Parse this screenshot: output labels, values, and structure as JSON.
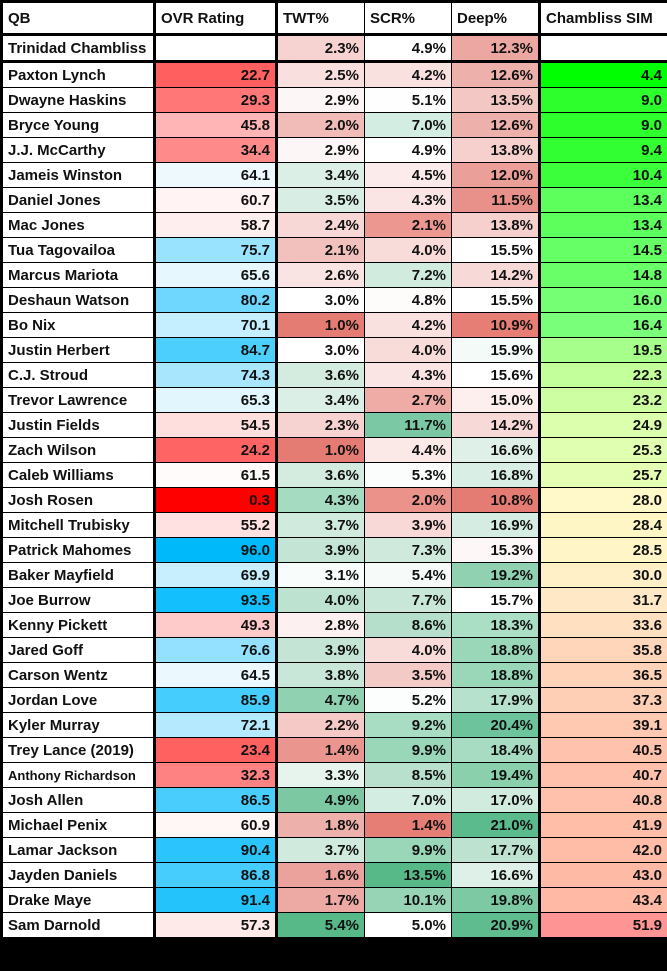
{
  "table": {
    "headers": [
      "QB",
      "OVR Rating",
      "TWT%",
      "SCR%",
      "Deep%",
      "Chambliss SIM"
    ],
    "baseline": {
      "qb": "Trinidad Chambliss",
      "ovr": "",
      "twt": "2.3%",
      "scr": "4.9%",
      "deep": "12.3%",
      "sim": "",
      "colors": {
        "ovr": "#ffffff",
        "twt": "#f6d3d1",
        "scr": "#ffffff",
        "deep": "#eca7a2",
        "sim": "#ffffff"
      }
    },
    "rows": [
      {
        "qb": "Paxton Lynch",
        "ovr": "22.7",
        "twt": "2.5%",
        "scr": "4.2%",
        "deep": "12.6%",
        "sim": "4.4",
        "colors": {
          "ovr": "#ff5f5f",
          "twt": "#f9dfde",
          "scr": "#f9e1e0",
          "deep": "#eeb0ab",
          "sim": "#00ff00"
        }
      },
      {
        "qb": "Dwayne Haskins",
        "ovr": "29.3",
        "twt": "2.9%",
        "scr": "5.1%",
        "deep": "13.5%",
        "sim": "9.0",
        "colors": {
          "ovr": "#ff7777",
          "twt": "#fcf6f6",
          "scr": "#fefefe",
          "deep": "#f3c7c4",
          "sim": "#2dff2d"
        }
      },
      {
        "qb": "Bryce Young",
        "ovr": "45.8",
        "twt": "2.0%",
        "scr": "7.0%",
        "deep": "12.6%",
        "sim": "9.0",
        "colors": {
          "ovr": "#ffb5b5",
          "twt": "#f1bcb8",
          "scr": "#d4ede2",
          "deep": "#eeb0ab",
          "sim": "#2dff2d"
        }
      },
      {
        "qb": "J.J. McCarthy",
        "ovr": "34.4",
        "twt": "2.9%",
        "scr": "4.9%",
        "deep": "13.8%",
        "sim": "9.4",
        "colors": {
          "ovr": "#ff8a8a",
          "twt": "#fcf6f6",
          "scr": "#ffffff",
          "deep": "#f5d0cd",
          "sim": "#32ff32"
        }
      },
      {
        "qb": "Jameis Winston",
        "ovr": "64.1",
        "twt": "3.4%",
        "scr": "4.5%",
        "deep": "12.0%",
        "sim": "10.4",
        "colors": {
          "ovr": "#eef9fe",
          "twt": "#dcefe6",
          "scr": "#fbeceb",
          "deep": "#eb9f99",
          "sim": "#3cff3c"
        }
      },
      {
        "qb": "Daniel Jones",
        "ovr": "60.7",
        "twt": "3.5%",
        "scr": "4.3%",
        "deep": "11.5%",
        "sim": "13.4",
        "colors": {
          "ovr": "#fff3f3",
          "twt": "#d8ede3",
          "scr": "#fae5e4",
          "deep": "#e8918a",
          "sim": "#5cff5c"
        }
      },
      {
        "qb": "Mac Jones",
        "ovr": "58.7",
        "twt": "2.4%",
        "scr": "2.1%",
        "deep": "13.8%",
        "sim": "13.4",
        "colors": {
          "ovr": "#ffeeee",
          "twt": "#f7d8d6",
          "scr": "#ec9891",
          "deep": "#f5d0cd",
          "sim": "#5cff5c"
        }
      },
      {
        "qb": "Tua Tagovailoa",
        "ovr": "75.7",
        "twt": "2.1%",
        "scr": "4.0%",
        "deep": "15.5%",
        "sim": "14.5",
        "colors": {
          "ovr": "#9ae3fe",
          "twt": "#f3c1bd",
          "scr": "#f8dcda",
          "deep": "#ffffff",
          "sim": "#66ff66"
        }
      },
      {
        "qb": "Marcus Mariota",
        "ovr": "65.6",
        "twt": "2.6%",
        "scr": "7.2%",
        "deep": "14.2%",
        "sim": "14.8",
        "colors": {
          "ovr": "#e6f7fe",
          "twt": "#fae4e3",
          "scr": "#d1ebdf",
          "deep": "#f7dad8",
          "sim": "#69ff69"
        }
      },
      {
        "qb": "Deshaun Watson",
        "ovr": "80.2",
        "twt": "3.0%",
        "scr": "4.8%",
        "deep": "15.5%",
        "sim": "16.0",
        "colors": {
          "ovr": "#6fd6fd",
          "twt": "#ffffff",
          "scr": "#fefbfb",
          "deep": "#ffffff",
          "sim": "#75ff75"
        }
      },
      {
        "qb": "Bo Nix",
        "ovr": "70.1",
        "twt": "1.0%",
        "scr": "4.2%",
        "deep": "10.9%",
        "sim": "16.4",
        "colors": {
          "ovr": "#c5effe",
          "twt": "#e57c73",
          "scr": "#f9e1e0",
          "deep": "#e67e75",
          "sim": "#7aff7a"
        }
      },
      {
        "qb": "Justin Herbert",
        "ovr": "84.7",
        "twt": "3.0%",
        "scr": "4.0%",
        "deep": "15.9%",
        "sim": "19.5",
        "colors": {
          "ovr": "#4dcffd",
          "twt": "#ffffff",
          "scr": "#f8dcda",
          "deep": "#f3faf7",
          "sim": "#a6ff8a"
        }
      },
      {
        "qb": "C.J. Stroud",
        "ovr": "74.3",
        "twt": "3.6%",
        "scr": "4.3%",
        "deep": "15.6%",
        "sim": "22.3",
        "colors": {
          "ovr": "#a8e6fe",
          "twt": "#d4ebe0",
          "scr": "#fae5e4",
          "deep": "#ffffff",
          "sim": "#c3ff9a"
        }
      },
      {
        "qb": "Trevor Lawrence",
        "ovr": "65.3",
        "twt": "3.4%",
        "scr": "2.7%",
        "deep": "15.0%",
        "sim": "23.2",
        "colors": {
          "ovr": "#e2f6fe",
          "twt": "#dcefe6",
          "scr": "#efaca7",
          "deep": "#fcefee",
          "sim": "#cdffa2"
        }
      },
      {
        "qb": "Justin Fields",
        "ovr": "54.5",
        "twt": "2.3%",
        "scr": "11.7%",
        "deep": "14.2%",
        "sim": "24.9",
        "colors": {
          "ovr": "#ffdede",
          "twt": "#f6d3d1",
          "scr": "#7bc9a4",
          "deep": "#f7dad8",
          "sim": "#dcffae"
        }
      },
      {
        "qb": "Zach Wilson",
        "ovr": "24.2",
        "twt": "1.0%",
        "scr": "4.4%",
        "deep": "16.6%",
        "sim": "25.3",
        "colors": {
          "ovr": "#ff6464",
          "twt": "#e57c73",
          "scr": "#fbe9e8",
          "deep": "#def0e8",
          "sim": "#e0ffb0"
        }
      },
      {
        "qb": "Caleb Williams",
        "ovr": "61.5",
        "twt": "3.6%",
        "scr": "5.3%",
        "deep": "16.8%",
        "sim": "25.7",
        "colors": {
          "ovr": "#fffbfb",
          "twt": "#d4ebe0",
          "scr": "#fafdfc",
          "deep": "#d9eee4",
          "sim": "#e4ffb4"
        }
      },
      {
        "qb": "Josh Rosen",
        "ovr": "0.3",
        "twt": "4.3%",
        "scr": "2.0%",
        "deep": "10.8%",
        "sim": "28.0",
        "colors": {
          "ovr": "#ff0000",
          "twt": "#a5dcc1",
          "scr": "#eb928b",
          "deep": "#e57c73",
          "sim": "#fff8c8"
        }
      },
      {
        "qb": "Mitchell Trubisky",
        "ovr": "55.2",
        "twt": "3.7%",
        "scr": "3.9%",
        "deep": "16.9%",
        "sim": "28.4",
        "colors": {
          "ovr": "#ffe1e1",
          "twt": "#d0eadd",
          "scr": "#f8d9d7",
          "deep": "#d5ece2",
          "sim": "#fff6c6"
        }
      },
      {
        "qb": "Patrick Mahomes",
        "ovr": "96.0",
        "twt": "3.9%",
        "scr": "7.3%",
        "deep": "15.3%",
        "sim": "28.5",
        "colors": {
          "ovr": "#00b9fb",
          "twt": "#c4e5d5",
          "scr": "#cfeadd",
          "deep": "#fdf7f7",
          "sim": "#fff5c6"
        }
      },
      {
        "qb": "Baker Mayfield",
        "ovr": "69.9",
        "twt": "3.1%",
        "scr": "5.4%",
        "deep": "19.2%",
        "sim": "30.0",
        "colors": {
          "ovr": "#c7effe",
          "twt": "#f8fcfa",
          "scr": "#f6fbf9",
          "deep": "#8fd1b1",
          "sim": "#fff0c8"
        }
      },
      {
        "qb": "Joe Burrow",
        "ovr": "93.5",
        "twt": "4.0%",
        "scr": "7.7%",
        "deep": "15.7%",
        "sim": "31.7",
        "colors": {
          "ovr": "#13bffc",
          "twt": "#bde2d0",
          "scr": "#c8e7d8",
          "deep": "#ffffff",
          "sim": "#ffe8c6"
        }
      },
      {
        "qb": "Kenny Pickett",
        "ovr": "49.3",
        "twt": "2.8%",
        "scr": "8.6%",
        "deep": "18.3%",
        "sim": "33.6",
        "colors": {
          "ovr": "#ffcaca",
          "twt": "#fcf1f0",
          "scr": "#b6dfcb",
          "deep": "#aadec5",
          "sim": "#ffe0c0"
        }
      },
      {
        "qb": "Jared Goff",
        "ovr": "76.6",
        "twt": "3.9%",
        "scr": "4.0%",
        "deep": "18.8%",
        "sim": "35.8",
        "colors": {
          "ovr": "#93e1fe",
          "twt": "#c4e5d5",
          "scr": "#f8dcda",
          "deep": "#9ad6b8",
          "sim": "#ffd6ba"
        }
      },
      {
        "qb": "Carson Wentz",
        "ovr": "64.5",
        "twt": "3.8%",
        "scr": "3.5%",
        "deep": "18.8%",
        "sim": "36.5",
        "colors": {
          "ovr": "#ebf9fe",
          "twt": "#c8e7d8",
          "scr": "#f4cac7",
          "deep": "#9ad6b8",
          "sim": "#ffd3b8"
        }
      },
      {
        "qb": "Jordan Love",
        "ovr": "85.9",
        "twt": "4.7%",
        "scr": "5.2%",
        "deep": "17.9%",
        "sim": "37.3",
        "colors": {
          "ovr": "#45cdfd",
          "twt": "#8fd1b1",
          "scr": "#fcfefd",
          "deep": "#b6e1cc",
          "sim": "#ffcfb5"
        }
      },
      {
        "qb": "Kyler Murray",
        "ovr": "72.1",
        "twt": "2.2%",
        "scr": "9.2%",
        "deep": "20.4%",
        "sim": "39.1",
        "colors": {
          "ovr": "#b5eafe",
          "twt": "#f5c9c6",
          "scr": "#a8dcc3",
          "deep": "#6dc39b",
          "sim": "#ffc8b0"
        }
      },
      {
        "qb": "Trey Lance (2019)",
        "ovr": "23.4",
        "twt": "1.4%",
        "scr": "9.9%",
        "deep": "18.4%",
        "sim": "40.5",
        "colors": {
          "ovr": "#ff6161",
          "twt": "#ea968f",
          "scr": "#9ad6b8",
          "deep": "#a7dcc2",
          "sim": "#ffc2ad"
        }
      },
      {
        "qb": "Anthony Richardson",
        "ovr": "32.3",
        "twt": "3.3%",
        "scr": "8.5%",
        "deep": "19.4%",
        "sim": "40.7",
        "colors": {
          "ovr": "#ff8282",
          "twt": "#e7f4ee",
          "scr": "#b8e0cc",
          "deep": "#8ad0ad",
          "sim": "#ffc1ac"
        }
      },
      {
        "qb": "Josh Allen",
        "ovr": "86.5",
        "twt": "4.9%",
        "scr": "7.0%",
        "deep": "17.0%",
        "sim": "40.8",
        "colors": {
          "ovr": "#49cdfd",
          "twt": "#7cc8a3",
          "scr": "#d4ede2",
          "deep": "#d1ebdf",
          "sim": "#ffc1ab"
        }
      },
      {
        "qb": "Michael Penix",
        "ovr": "60.9",
        "twt": "1.8%",
        "scr": "1.4%",
        "deep": "21.0%",
        "sim": "41.9",
        "colors": {
          "ovr": "#fff6f6",
          "twt": "#eeb0ab",
          "scr": "#e67e75",
          "deep": "#5bbb8d",
          "sim": "#ffbea8"
        }
      },
      {
        "qb": "Lamar Jackson",
        "ovr": "90.4",
        "twt": "3.7%",
        "scr": "9.9%",
        "deep": "17.7%",
        "sim": "42.0",
        "colors": {
          "ovr": "#2bc4fc",
          "twt": "#d0eadd",
          "scr": "#9ad6b8",
          "deep": "#bde2d0",
          "sim": "#ffbda8"
        }
      },
      {
        "qb": "Jayden Daniels",
        "ovr": "86.8",
        "twt": "1.6%",
        "scr": "13.5%",
        "deep": "16.6%",
        "sim": "43.0",
        "colors": {
          "ovr": "#47cdfd",
          "twt": "#eca29c",
          "scr": "#57b988",
          "deep": "#def0e8",
          "sim": "#ffbaa5"
        }
      },
      {
        "qb": "Drake Maye",
        "ovr": "91.4",
        "twt": "1.7%",
        "scr": "10.1%",
        "deep": "19.8%",
        "sim": "43.4",
        "colors": {
          "ovr": "#25c3fc",
          "twt": "#eda9a4",
          "scr": "#97d4b6",
          "deep": "#7dc9a4",
          "sim": "#ffb9a4"
        }
      },
      {
        "qb": "Sam Darnold",
        "ovr": "57.3",
        "twt": "5.4%",
        "scr": "5.0%",
        "deep": "20.9%",
        "sim": "51.9",
        "colors": {
          "ovr": "#ffeaea",
          "twt": "#57b988",
          "scr": "#ffffff",
          "deep": "#5ebc8f",
          "sim": "#ff9494"
        }
      }
    ]
  }
}
